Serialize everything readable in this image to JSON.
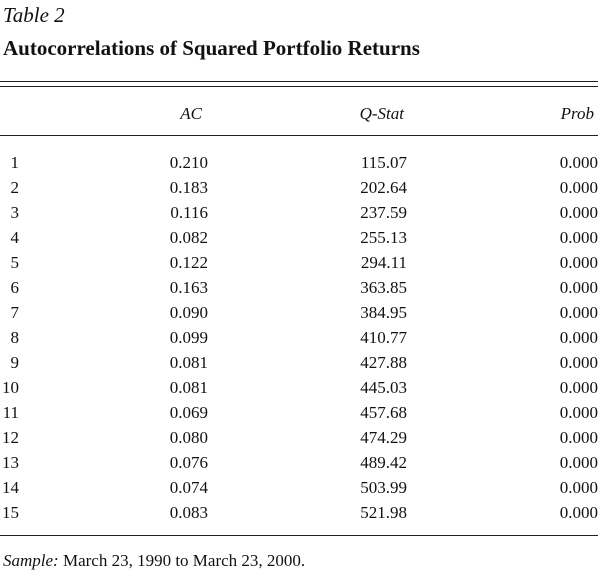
{
  "table": {
    "label": "Table 2",
    "title": "Autocorrelations of Squared Portfolio Returns",
    "headers": {
      "lag": "",
      "ac": "AC",
      "qstat": "Q-Stat",
      "prob": "Prob"
    },
    "rows": [
      {
        "lag": "1",
        "ac": "0.210",
        "qstat": "115.07",
        "prob": "0.000"
      },
      {
        "lag": "2",
        "ac": "0.183",
        "qstat": "202.64",
        "prob": "0.000"
      },
      {
        "lag": "3",
        "ac": "0.116",
        "qstat": "237.59",
        "prob": "0.000"
      },
      {
        "lag": "4",
        "ac": "0.082",
        "qstat": "255.13",
        "prob": "0.000"
      },
      {
        "lag": "5",
        "ac": "0.122",
        "qstat": "294.11",
        "prob": "0.000"
      },
      {
        "lag": "6",
        "ac": "0.163",
        "qstat": "363.85",
        "prob": "0.000"
      },
      {
        "lag": "7",
        "ac": "0.090",
        "qstat": "384.95",
        "prob": "0.000"
      },
      {
        "lag": "8",
        "ac": "0.099",
        "qstat": "410.77",
        "prob": "0.000"
      },
      {
        "lag": "9",
        "ac": "0.081",
        "qstat": "427.88",
        "prob": "0.000"
      },
      {
        "lag": "10",
        "ac": "0.081",
        "qstat": "445.03",
        "prob": "0.000"
      },
      {
        "lag": "11",
        "ac": "0.069",
        "qstat": "457.68",
        "prob": "0.000"
      },
      {
        "lag": "12",
        "ac": "0.080",
        "qstat": "474.29",
        "prob": "0.000"
      },
      {
        "lag": "13",
        "ac": "0.076",
        "qstat": "489.42",
        "prob": "0.000"
      },
      {
        "lag": "14",
        "ac": "0.074",
        "qstat": "503.99",
        "prob": "0.000"
      },
      {
        "lag": "15",
        "ac": "0.083",
        "qstat": "521.98",
        "prob": "0.000"
      }
    ]
  },
  "footnote": {
    "label": "Sample:",
    "text": " March 23, 1990 to March 23, 2000."
  }
}
